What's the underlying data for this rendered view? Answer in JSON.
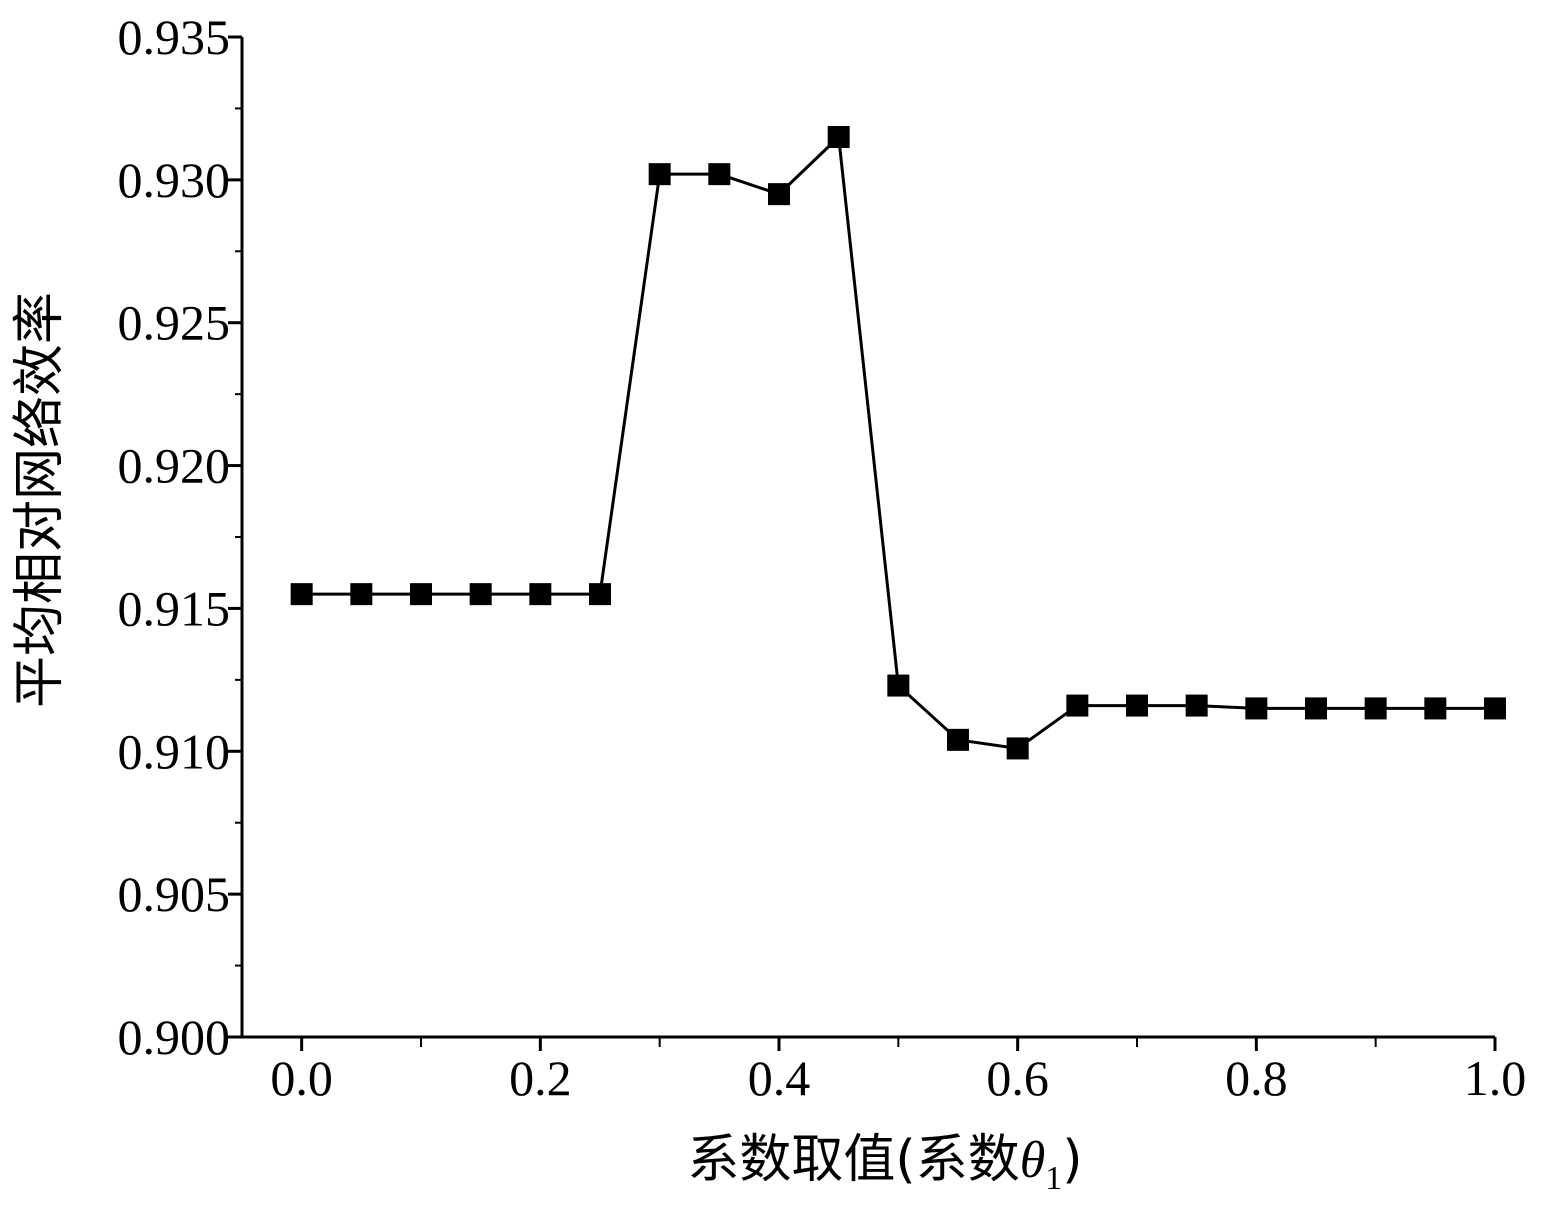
{
  "chart_data": {
    "type": "line",
    "title": "",
    "xlabel": "系数取值(系数θ1)",
    "xlabel_parts": {
      "prefix": "系数取值(系数",
      "symbol": "θ",
      "subscript": "1",
      "suffix": ")"
    },
    "ylabel": "平均相对网络效率",
    "xlim": [
      -0.05,
      1.0
    ],
    "ylim": [
      0.9,
      0.935
    ],
    "xticks": [
      0.0,
      0.2,
      0.4,
      0.6,
      0.8,
      1.0
    ],
    "xtick_labels": [
      "0.0",
      "0.2",
      "0.4",
      "0.6",
      "0.8",
      "1.0"
    ],
    "xminor_ticks": [
      0.0,
      0.1,
      0.2,
      0.3,
      0.4,
      0.5,
      0.6,
      0.7,
      0.8,
      0.9,
      1.0
    ],
    "yticks": [
      0.9,
      0.905,
      0.91,
      0.915,
      0.92,
      0.925,
      0.93,
      0.935
    ],
    "ytick_labels": [
      "0.900",
      "0.905",
      "0.910",
      "0.915",
      "0.920",
      "0.925",
      "0.930",
      "0.935"
    ],
    "yminor_ticks": [
      0.9025,
      0.9075,
      0.9125,
      0.9175,
      0.9225,
      0.9275,
      0.9325
    ],
    "grid": false,
    "marker": "square",
    "color": "#000000",
    "series": [
      {
        "x": [
          0.0,
          0.05,
          0.1,
          0.15,
          0.2,
          0.25,
          0.3,
          0.35,
          0.4,
          0.45,
          0.5,
          0.55,
          0.6,
          0.65,
          0.7,
          0.75,
          0.8,
          0.85,
          0.9,
          0.95,
          1.0
        ],
        "y": [
          0.9155,
          0.9155,
          0.9155,
          0.9155,
          0.9155,
          0.9155,
          0.9302,
          0.9302,
          0.9295,
          0.9315,
          0.9123,
          0.9104,
          0.9101,
          0.9116,
          0.9116,
          0.9116,
          0.9115,
          0.9115,
          0.9115,
          0.9115,
          0.9115
        ]
      }
    ]
  }
}
